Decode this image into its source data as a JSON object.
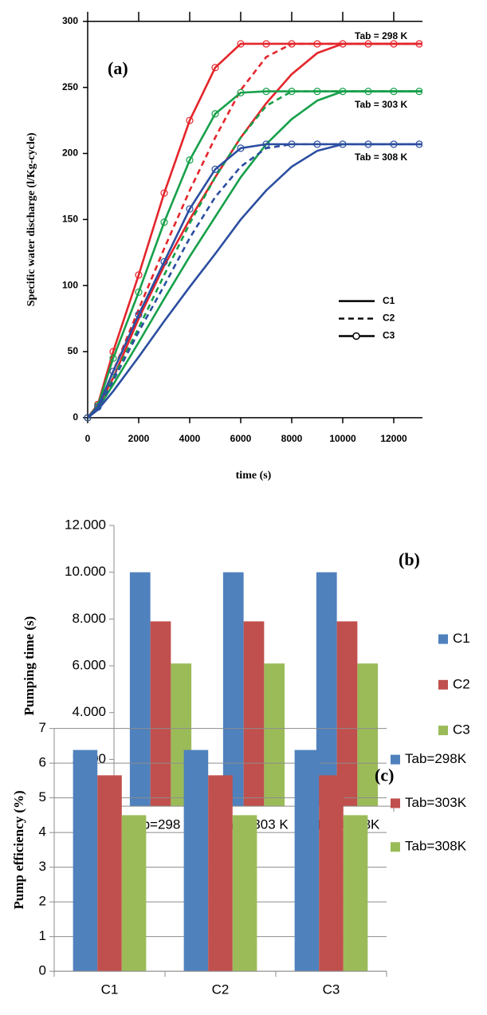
{
  "chart_data": [
    {
      "type": "line",
      "label": "(a)",
      "x_label": "time (s)",
      "y_label": "Specific water discharge (l/Kg-cycle)",
      "x": [
        0,
        400,
        1000,
        2000,
        3000,
        4000,
        5000,
        6000,
        7000,
        8000,
        9000,
        10000,
        11000,
        12000,
        13000,
        14000
      ],
      "xlim": [
        0,
        14000
      ],
      "xticks": [
        0,
        2000,
        4000,
        6000,
        8000,
        10000,
        12000,
        14000
      ],
      "ylim": [
        0,
        300
      ],
      "yticks": [
        0,
        50,
        100,
        150,
        200,
        250,
        300
      ],
      "series": [
        {
          "name": "C1",
          "style": "solid",
          "color": "#e4252b",
          "values": [
            0,
            8,
            30,
            75,
            115,
            150,
            182,
            212,
            238,
            260,
            276,
            283,
            283,
            283,
            283,
            283
          ]
        },
        {
          "name": "C2",
          "style": "dashed",
          "color": "#e4252b",
          "values": [
            0,
            8,
            35,
            82,
            128,
            172,
            212,
            248,
            273,
            283,
            283,
            283,
            283,
            283,
            283,
            283
          ]
        },
        {
          "name": "C3",
          "style": "markers",
          "color": "#e4252b",
          "values": [
            0,
            10,
            50,
            108,
            170,
            225,
            265,
            283,
            283,
            283,
            283,
            283,
            283,
            283,
            283,
            283
          ]
        },
        {
          "name": "C1",
          "style": "solid",
          "color": "#17a04a",
          "values": [
            0,
            7,
            25,
            57,
            90,
            122,
            152,
            182,
            207,
            226,
            240,
            247,
            247,
            247,
            247,
            247
          ]
        },
        {
          "name": "C2",
          "style": "dashed",
          "color": "#17a04a",
          "values": [
            0,
            7,
            30,
            68,
            108,
            147,
            182,
            212,
            236,
            247,
            247,
            247,
            247,
            247,
            247,
            247
          ]
        },
        {
          "name": "C3",
          "style": "markers",
          "color": "#17a04a",
          "values": [
            0,
            9,
            45,
            95,
            148,
            195,
            230,
            246,
            247,
            247,
            247,
            247,
            247,
            247,
            247,
            247
          ]
        },
        {
          "name": "C1",
          "style": "solid",
          "color": "#2b4ea0",
          "values": [
            0,
            6,
            20,
            46,
            73,
            99,
            124,
            150,
            172,
            190,
            202,
            207,
            207,
            207,
            207,
            207
          ]
        },
        {
          "name": "C2",
          "style": "dashed",
          "color": "#2b4ea0",
          "values": [
            0,
            7,
            28,
            65,
            100,
            136,
            167,
            190,
            204,
            207,
            207,
            207,
            207,
            207,
            207,
            207
          ]
        },
        {
          "name": "C3",
          "style": "markers",
          "color": "#2b4ea0",
          "values": [
            0,
            8,
            35,
            78,
            118,
            158,
            188,
            204,
            207,
            207,
            207,
            207,
            207,
            207,
            207,
            207
          ]
        }
      ],
      "annotations": [
        "Tab = 298 K",
        "Tab = 303 K",
        "Tab = 308 K"
      ]
    },
    {
      "type": "bar",
      "label": "(b)",
      "y_label": "Pumping time (s)",
      "grid": false,
      "legend": "right",
      "categories": [
        "Tab=298 K",
        "Tab= 303 K",
        "Tab= 308K"
      ],
      "ylim": [
        0,
        12000
      ],
      "yticks": [
        0,
        {
          "value": 2000,
          "label": "2.000"
        },
        {
          "value": 4000,
          "label": "4.000"
        },
        {
          "value": 6000,
          "label": "6.000"
        },
        {
          "value": 8000,
          "label": "8.000"
        },
        {
          "value": 10000,
          "label": "10.000"
        },
        {
          "value": 12000,
          "label": "12.000"
        }
      ],
      "series": [
        {
          "name": "C1",
          "color": "#4f81bd",
          "values": [
            10000,
            10000,
            10000
          ]
        },
        {
          "name": "C2",
          "color": "#c0504d",
          "values": [
            7900,
            7900,
            7900
          ]
        },
        {
          "name": "C3",
          "color": "#9bbb59",
          "values": [
            6100,
            6100,
            6100
          ]
        }
      ]
    },
    {
      "type": "bar",
      "label": "(c)",
      "y_label": "Pump efficiency (%)",
      "grid": true,
      "legend": "right",
      "categories": [
        "C1",
        "C2",
        "C3"
      ],
      "ylim": [
        0,
        7
      ],
      "yticks": [
        0,
        1,
        2,
        3,
        4,
        5,
        6,
        7
      ],
      "series": [
        {
          "name": "Tab=298K",
          "color": "#4f81bd",
          "values": [
            6.38,
            6.38,
            6.38
          ]
        },
        {
          "name": "Tab=303K",
          "color": "#c0504d",
          "values": [
            5.65,
            5.65,
            5.65
          ]
        },
        {
          "name": "Tab=308K",
          "color": "#9bbb59",
          "values": [
            4.5,
            4.5,
            4.5
          ]
        }
      ]
    }
  ]
}
